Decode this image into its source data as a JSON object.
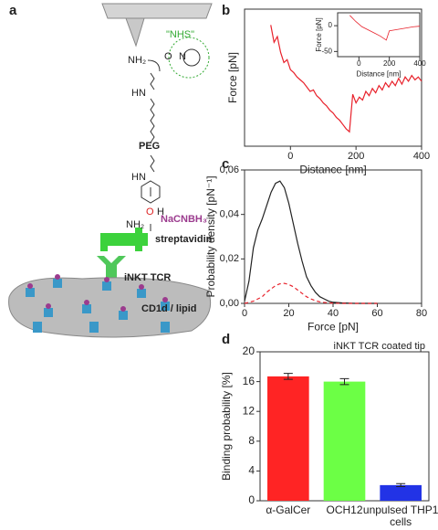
{
  "panel_labels": [
    "a",
    "b",
    "c",
    "d"
  ],
  "diagram": {
    "nh2_top": "NH₂",
    "nhs": "\"NHS\"",
    "o_ester": "O",
    "n_ring": "N",
    "hn_1": "HN",
    "peg": "PEG",
    "hn_2": "HN",
    "o_ald": "O",
    "h_ald": "H",
    "nh2_bottom": "NH₂",
    "reductant": "NaCNBH₃",
    "streptavidin": "streptavidin",
    "tcr": "iNKT TCR",
    "cd1d": "CD1d / lipid"
  },
  "chart_data": [
    {
      "type": "line",
      "xlabel": "Distance [nm]",
      "ylabel": "Force [pN]",
      "xlim": [
        -140,
        400
      ],
      "xticks": [
        0,
        200,
        400
      ],
      "ylim": [
        -50,
        45
      ],
      "series": [
        {
          "color": "#e8212b",
          "x": [
            -60,
            -50,
            -40,
            -30,
            -20,
            -10,
            0,
            10,
            20,
            30,
            40,
            50,
            60,
            70,
            80,
            90,
            100,
            110,
            120,
            130,
            140,
            150,
            160,
            170,
            180,
            190,
            200,
            210,
            220,
            230,
            240,
            250,
            260,
            270,
            280,
            290,
            300,
            310,
            320,
            330,
            340,
            350,
            360,
            370,
            380,
            390,
            400
          ],
          "values": [
            34,
            22,
            26,
            15,
            8,
            10,
            3,
            1,
            -2,
            -4,
            -6,
            -9,
            -12,
            -11,
            -15,
            -17,
            -20,
            -22,
            -25,
            -27,
            -30,
            -32,
            -35,
            -38,
            -40,
            -14,
            -20,
            -16,
            -18,
            -12,
            -15,
            -10,
            -13,
            -8,
            -11,
            -6,
            -9,
            -5,
            -8,
            -3,
            -7,
            -2,
            -5,
            -1,
            -4,
            -2,
            -5
          ]
        }
      ]
    },
    {
      "type": "line",
      "xlabel": "Distance [nm]",
      "ylabel": "Force [pN]",
      "xlim": [
        -140,
        400
      ],
      "xticks": [
        0,
        200,
        400
      ],
      "ylim": [
        -60,
        25
      ],
      "yticks": [
        -50,
        0
      ],
      "series": [
        {
          "color": "#e8212b",
          "x": [
            -60,
            -20,
            20,
            60,
            100,
            140,
            180,
            200,
            240,
            280,
            320,
            360,
            400
          ],
          "values": [
            20,
            8,
            -2,
            -8,
            -14,
            -20,
            -28,
            -10,
            -8,
            -6,
            -4,
            -2,
            -1
          ]
        }
      ]
    },
    {
      "type": "line",
      "xlabel": "Force [pN]",
      "ylabel": "Probability density [pN⁻¹]",
      "xlim": [
        0,
        80
      ],
      "xticks": [
        0,
        20,
        40,
        60,
        80
      ],
      "ylim": [
        0,
        0.06
      ],
      "yticks": [
        {
          "value": 0,
          "label": "0,00"
        },
        {
          "value": 0.02,
          "label": "0,02"
        },
        {
          "value": 0.04,
          "label": "0,04"
        },
        {
          "value": 0.06,
          "label": "0,06"
        }
      ],
      "series": [
        {
          "color": "#222222",
          "dash": false,
          "x": [
            0,
            2,
            4,
            6,
            8,
            10,
            12,
            14,
            16,
            18,
            20,
            22,
            24,
            26,
            28,
            30,
            32,
            34,
            36,
            38,
            40,
            44,
            50,
            60
          ],
          "values": [
            0.001,
            0.01,
            0.025,
            0.033,
            0.038,
            0.044,
            0.05,
            0.054,
            0.055,
            0.052,
            0.045,
            0.036,
            0.027,
            0.019,
            0.012,
            0.008,
            0.005,
            0.003,
            0.002,
            0.001,
            0.0005,
            0.0002,
            0,
            0
          ]
        },
        {
          "color": "#e8212b",
          "dash": true,
          "x": [
            0,
            2,
            4,
            6,
            8,
            10,
            12,
            14,
            16,
            18,
            20,
            22,
            24,
            26,
            28,
            30,
            32,
            34,
            36,
            40,
            44,
            50,
            60
          ],
          "values": [
            0,
            0.0005,
            0.001,
            0.002,
            0.003,
            0.005,
            0.0065,
            0.008,
            0.0088,
            0.009,
            0.0085,
            0.0075,
            0.006,
            0.0045,
            0.003,
            0.002,
            0.0012,
            0.0007,
            0.0004,
            0.0001,
            0,
            0,
            0
          ]
        }
      ]
    },
    {
      "type": "bar",
      "ylabel": "Binding probability [%]",
      "annotation": "iNKT TCR coated tip",
      "categories": [
        "α-GalCer",
        "OCH12",
        "unpulsed THP1 cells"
      ],
      "values": [
        16.7,
        16.0,
        2.1
      ],
      "errors": [
        0.4,
        0.4,
        0.2
      ],
      "colors": [
        "#ff2424",
        "#6cff45",
        "#2233e6"
      ],
      "ylim": [
        0,
        20
      ],
      "yticks": [
        0,
        4,
        8,
        12,
        16,
        20
      ]
    }
  ]
}
